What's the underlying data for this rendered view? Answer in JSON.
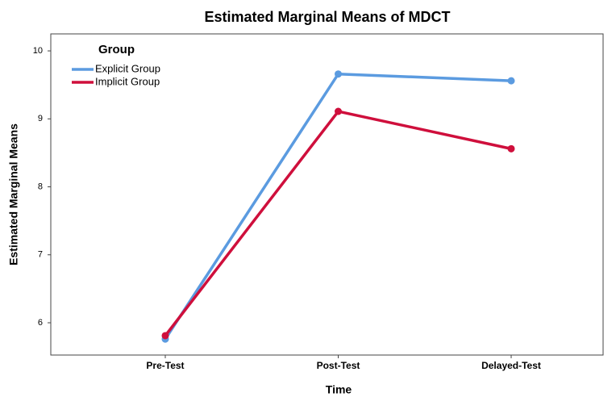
{
  "chart_data": {
    "type": "line",
    "title": "Estimated Marginal Means of MDCT",
    "x_label": "Time",
    "y_label": "Estimated Marginal Means",
    "legend_title": "Group",
    "legend": "top-left",
    "categories": [
      "Pre-Test",
      "Post-Test",
      "Delayed-Test"
    ],
    "series": [
      {
        "name": "Explicit Group",
        "color": "#5b9be0",
        "values": [
          5.76,
          9.66,
          9.56
        ]
      },
      {
        "name": "Implicit Group",
        "color": "#cf0f3c",
        "values": [
          5.81,
          9.11,
          8.56
        ]
      }
    ],
    "ylim": [
      5.525,
      10.25
    ],
    "yticks": [
      6,
      7,
      8,
      9,
      10
    ],
    "grid": false
  }
}
